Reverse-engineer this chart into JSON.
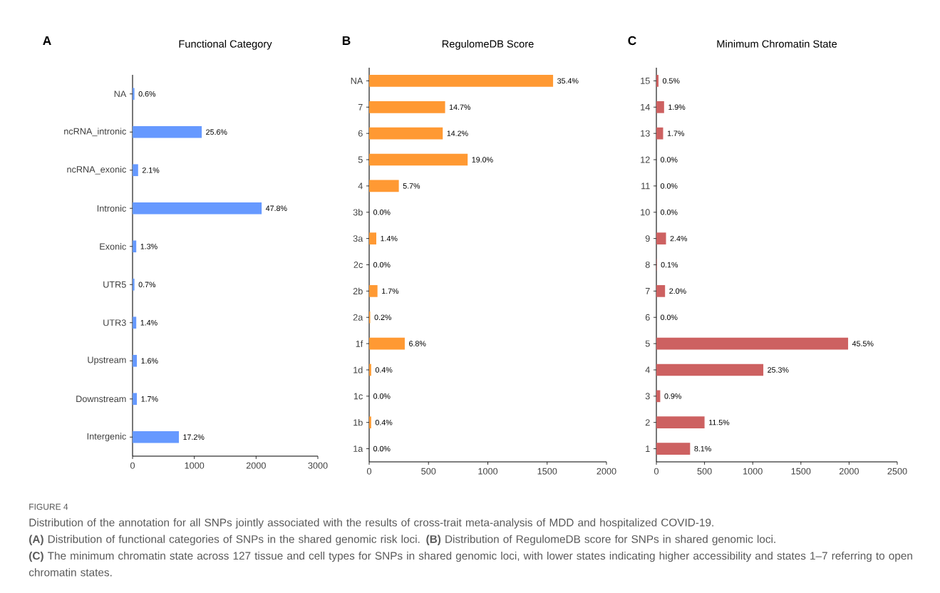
{
  "chart_data": [
    {
      "type": "bar",
      "orientation": "horizontal",
      "title": "Functional Category",
      "color": "#6699ff",
      "annotations": [
        "A",
        "FIGURE 4",
        "Distribution of the annotation for all SNPs jointly associated with the results of cross-trait meta-analysis of MDD and hospitalized COVID-19.",
        "**(A)** Distribution of functional categories of SNPs in the shared genomic risk loci. **(B)** Distribution of RegulomeDB score for SNPs in shared genomic loci.",
        "**(C)** The minimum chromatin state across 127 tissue and cell types for SNPs in shared genomic loci, with lower states indicating higher accessibility and states 1–7 referring to open chromatin states.",
        {
          "text": "0.6%",
          "x": 30,
          "y": "NA"
        },
        {
          "text": "25.6%",
          "x": 1120,
          "y": "ncRNA_intronic"
        },
        {
          "text": "2.1%",
          "x": 90,
          "y": "ncRNA_exonic"
        },
        {
          "text": "47.8%",
          "x": 2090,
          "y": "Intronic"
        },
        {
          "text": "1.3%",
          "x": 60,
          "y": "Exonic"
        },
        {
          "text": "0.7%",
          "x": 30,
          "y": "UTR5"
        },
        {
          "text": "1.4%",
          "x": 60,
          "y": "UTR3"
        },
        {
          "text": "1.6%",
          "x": 70,
          "y": "Upstream"
        },
        {
          "text": "1.7%",
          "x": 70,
          "y": "Downstream"
        },
        {
          "text": "17.2%",
          "x": 750,
          "y": "Intergenic"
        }
      ],
      "categories": [
        "NA",
        "ncRNA_intronic",
        "ncRNA_exonic",
        "Intronic",
        "Exonic",
        "UTR5",
        "UTR3",
        "Upstream",
        "Downstream",
        "Intergenic"
      ],
      "values": [
        30,
        1120,
        90,
        2090,
        60,
        30,
        60,
        70,
        70,
        750
      ],
      "xlim": [
        0,
        3000
      ],
      "xticks": [
        0,
        1000,
        2000,
        3000
      ]
    },
    {
      "type": "bar",
      "orientation": "horizontal",
      "title": "RegulomeDB Score",
      "color": "#ff9933",
      "annotations": [
        "B",
        {
          "text": "35.4%",
          "x": 1550,
          "y": "NA"
        },
        {
          "text": "14.7%",
          "x": 640,
          "y": "7"
        },
        {
          "text": "14.2%",
          "x": 620,
          "y": "6"
        },
        {
          "text": "19.0%",
          "x": 830,
          "y": "5"
        },
        {
          "text": "5.7%",
          "x": 250,
          "y": "4"
        },
        {
          "text": "0.0%",
          "x": 0,
          "y": "3b"
        },
        {
          "text": "1.4%",
          "x": 60,
          "y": "3a"
        },
        {
          "text": "0.0%",
          "x": 0,
          "y": "2c"
        },
        {
          "text": "1.7%",
          "x": 70,
          "y": "2b"
        },
        {
          "text": "0.2%",
          "x": 9,
          "y": "2a"
        },
        {
          "text": "6.8%",
          "x": 300,
          "y": "1f"
        },
        {
          "text": "0.4%",
          "x": 17,
          "y": "1d"
        },
        {
          "text": "0.0%",
          "x": 0,
          "y": "1c"
        },
        {
          "text": "0.4%",
          "x": 17,
          "y": "1b"
        },
        {
          "text": "0.0%",
          "x": 0,
          "y": "1a"
        }
      ],
      "categories": [
        "NA",
        "7",
        "6",
        "5",
        "4",
        "3b",
        "3a",
        "2c",
        "2b",
        "2a",
        "1f",
        "1d",
        "1c",
        "1b",
        "1a"
      ],
      "values": [
        1550,
        640,
        620,
        830,
        250,
        0,
        60,
        0,
        70,
        9,
        300,
        17,
        0,
        17,
        0
      ],
      "xlim": [
        0,
        2000
      ],
      "xticks": [
        0,
        500,
        1000,
        1500,
        2000
      ]
    },
    {
      "type": "bar",
      "orientation": "horizontal",
      "title": "Minimum Chromatin State",
      "color": "#cd6161",
      "annotations": [
        "C",
        {
          "text": "0.5%",
          "x": 22,
          "y": "15"
        },
        {
          "text": "1.9%",
          "x": 80,
          "y": "14"
        },
        {
          "text": "1.7%",
          "x": 70,
          "y": "13"
        },
        {
          "text": "0.0%",
          "x": 0,
          "y": "12"
        },
        {
          "text": "0.0%",
          "x": 0,
          "y": "11"
        },
        {
          "text": "0.0%",
          "x": 0,
          "y": "10"
        },
        {
          "text": "2.4%",
          "x": 100,
          "y": "9"
        },
        {
          "text": "0.1%",
          "x": 4,
          "y": "8"
        },
        {
          "text": "2.0%",
          "x": 90,
          "y": "7"
        },
        {
          "text": "0.0%",
          "x": 0,
          "y": "6"
        },
        {
          "text": "45.5%",
          "x": 1990,
          "y": "5"
        },
        {
          "text": "25.3%",
          "x": 1110,
          "y": "4"
        },
        {
          "text": "0.9%",
          "x": 40,
          "y": "3"
        },
        {
          "text": "11.5%",
          "x": 500,
          "y": "2"
        },
        {
          "text": "8.1%",
          "x": 350,
          "y": "1"
        }
      ],
      "categories": [
        "15",
        "14",
        "13",
        "12",
        "11",
        "10",
        "9",
        "8",
        "7",
        "6",
        "5",
        "4",
        "3",
        "2",
        "1"
      ],
      "values": [
        22,
        80,
        70,
        0,
        0,
        0,
        100,
        4,
        90,
        0,
        1990,
        1110,
        40,
        500,
        350
      ],
      "xlim": [
        0,
        2500
      ],
      "xticks": [
        0,
        500,
        1000,
        1500,
        2000,
        2500
      ]
    }
  ]
}
